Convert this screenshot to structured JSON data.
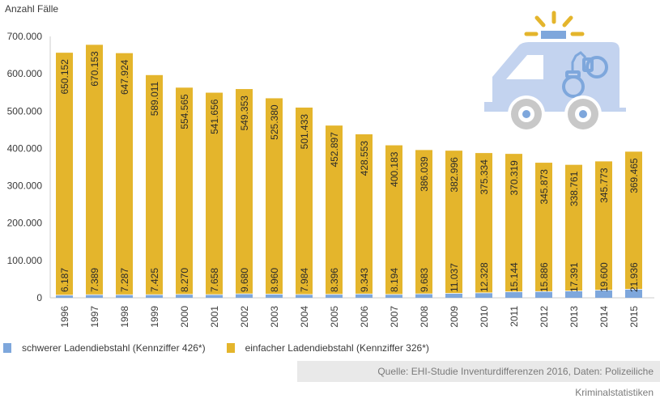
{
  "chart_data": {
    "type": "bar",
    "stacked": true,
    "title": "",
    "xlabel": "",
    "ylabel": "Anzahl Fälle",
    "ylim": [
      0,
      700000
    ],
    "yticks": [
      0,
      100000,
      200000,
      300000,
      400000,
      500000,
      600000,
      700000
    ],
    "ytick_labels": [
      "0",
      "100.000",
      "200.000",
      "300.000",
      "400.000",
      "500.000",
      "600.000",
      "700.000"
    ],
    "grid": false,
    "legend_position": "bottom-left",
    "categories": [
      "1996",
      "1997",
      "1998",
      "1999",
      "2000",
      "2001",
      "2002",
      "2003",
      "2004",
      "2005",
      "2006",
      "2007",
      "2008",
      "2009",
      "2010",
      "2011",
      "2012",
      "2013",
      "2014",
      "2015"
    ],
    "series": [
      {
        "name": "schwerer Ladendiebstahl (Kennziffer 426*)",
        "color": "#7ea7dc",
        "values": [
          6187,
          7389,
          7287,
          7425,
          8270,
          7658,
          9680,
          8960,
          7984,
          8396,
          9343,
          8194,
          9683,
          11037,
          12328,
          15144,
          15886,
          17391,
          19600,
          21936
        ],
        "labels": [
          "6.187",
          "7.389",
          "7.287",
          "7.425",
          "8.270",
          "7.658",
          "9.680",
          "8.960",
          "7.984",
          "8.396",
          "9.343",
          "8.194",
          "9.683",
          "11.037",
          "12.328",
          "15.144",
          "15.886",
          "17.391",
          "19.600",
          "21.936"
        ]
      },
      {
        "name": "einfacher Ladendiebstahl (Kennziffer 326*)",
        "color": "#e4b52c",
        "values": [
          650152,
          670153,
          647924,
          589011,
          554565,
          541656,
          549353,
          525380,
          501433,
          452897,
          428553,
          400183,
          386039,
          382996,
          375334,
          370319,
          345873,
          338761,
          345773,
          369465
        ],
        "labels": [
          "650.152",
          "670.153",
          "647.924",
          "589.011",
          "554.565",
          "541.656",
          "549.353",
          "525.380",
          "501.433",
          "452.897",
          "428.553",
          "400.183",
          "386.039",
          "382.996",
          "375.334",
          "370.319",
          "345.873",
          "338.761",
          "345.773",
          "369.465"
        ]
      }
    ],
    "source": "Quelle: EHI-Studie Inventurdifferenzen 2016, Daten: Polizeiliche Kriminalstatistiken"
  },
  "legend": {
    "items": [
      {
        "label": "schwerer Ladendiebstahl (Kennziffer 426*)",
        "color": "#7ea7dc"
      },
      {
        "label": "einfacher Ladendiebstahl (Kennziffer 326*)",
        "color": "#e4b52c"
      }
    ]
  },
  "icon": {
    "name": "police-van-handcuffs-icon",
    "body_color": "#c3d3ef",
    "accent_color": "#7ea7dc",
    "light_color": "#e4b52c",
    "wheel_color": "#c8c8c8"
  }
}
